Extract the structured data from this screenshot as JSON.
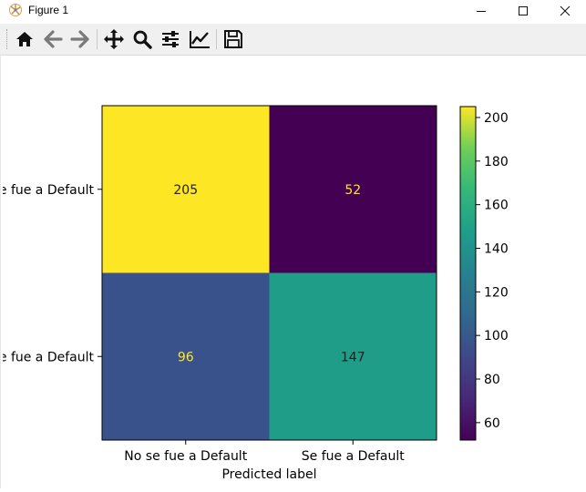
{
  "window": {
    "title": "Figure 1",
    "controls": [
      "minimize",
      "maximize",
      "close"
    ]
  },
  "toolbar": {
    "buttons": [
      {
        "name": "home",
        "icon": "home-icon"
      },
      {
        "name": "back",
        "icon": "arrow-left-icon"
      },
      {
        "name": "forward",
        "icon": "arrow-right-icon"
      },
      {
        "name": "pan",
        "icon": "move-icon"
      },
      {
        "name": "zoom",
        "icon": "magnifier-icon"
      },
      {
        "name": "configure-subplots",
        "icon": "sliders-icon"
      },
      {
        "name": "edit-axis",
        "icon": "line-chart-icon"
      },
      {
        "name": "save",
        "icon": "floppy-disk-icon"
      }
    ]
  },
  "chart_data": {
    "type": "heatmap",
    "title": "",
    "xlabel": "Predicted label",
    "ylabel": "",
    "x_categories": [
      "No se fue a Default",
      "Se fue a Default"
    ],
    "y_categories": [
      "No se fue a Default",
      "Se fue a Default"
    ],
    "y_tick_labels_visible": [
      "e fue a Default",
      "e fue a Default"
    ],
    "matrix": [
      [
        205,
        52
      ],
      [
        96,
        147
      ]
    ],
    "colormap": "viridis",
    "colorbar": {
      "min": 52,
      "max": 205,
      "ticks": [
        60,
        80,
        100,
        120,
        140,
        160,
        180,
        200
      ]
    },
    "annotation_colors": {
      "dark_on_light": "#1f1f1f",
      "light_on_dark": "#fde725"
    }
  }
}
